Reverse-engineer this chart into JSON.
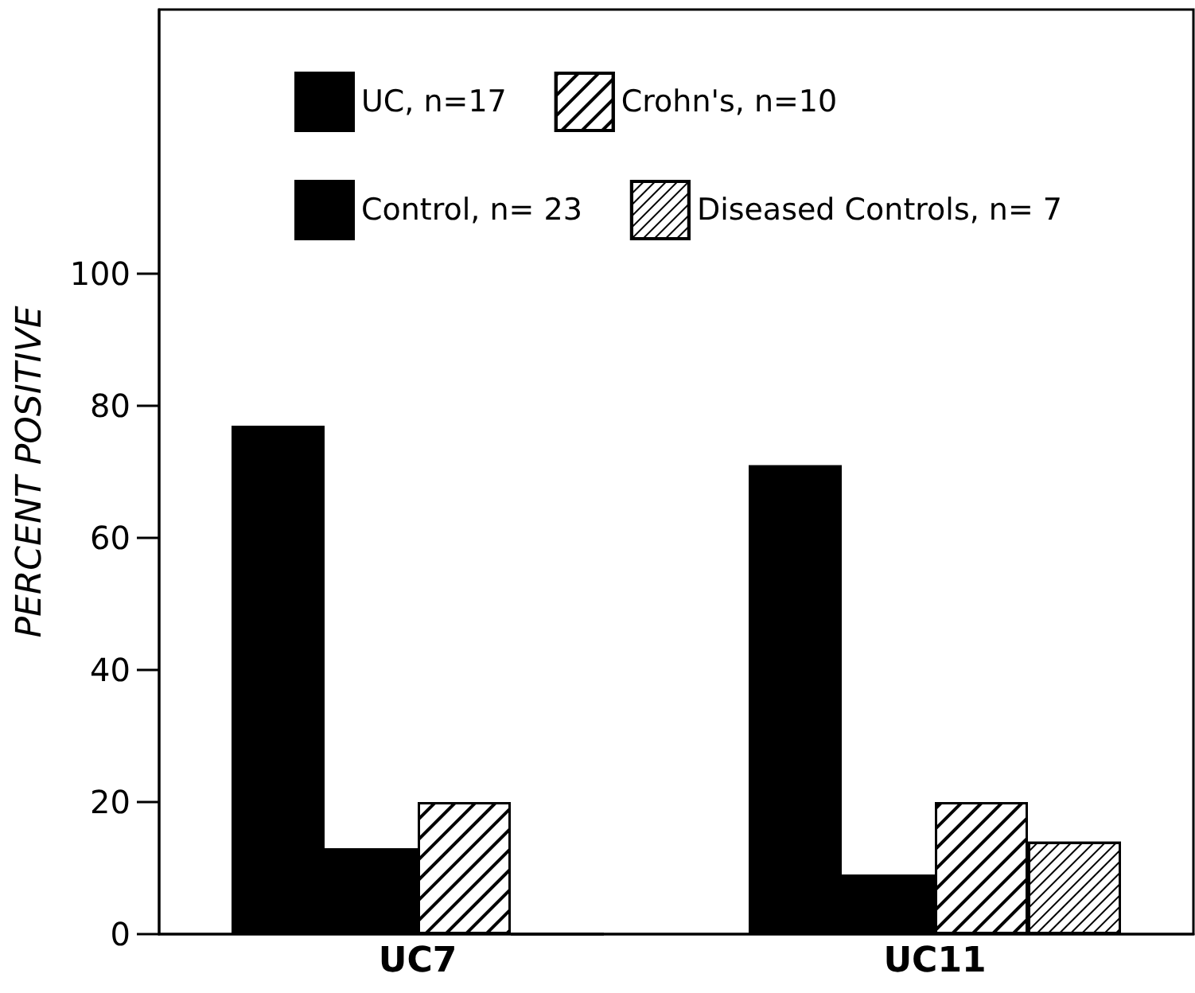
{
  "chart_data": {
    "type": "bar",
    "ylabel": "PERCENT POSITIVE",
    "categories": [
      "UC7",
      "UC11"
    ],
    "series": [
      {
        "name": "UC, n=17",
        "color": "#000000",
        "values": [
          77,
          71
        ]
      },
      {
        "name": "Control, n= 23",
        "color": "#000000",
        "values": [
          13,
          9
        ]
      },
      {
        "name": "Crohn's, n=10",
        "color": "#ffffff",
        "values": [
          20,
          20
        ]
      },
      {
        "name": "Diseased Controls, n= 7",
        "color": "#ffffff",
        "values": [
          0,
          14
        ]
      }
    ],
    "ylim": [
      0,
      140
    ],
    "yticks": [
      0,
      20,
      40,
      60,
      80,
      100
    ],
    "grid": false,
    "legend": "top"
  }
}
